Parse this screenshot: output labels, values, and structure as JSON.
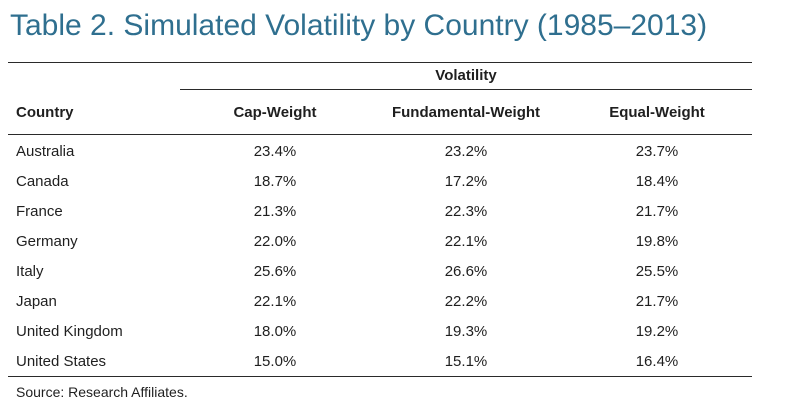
{
  "title": "Table 2. Simulated Volatility by Country (1985–2013)",
  "group_header": "Volatility",
  "columns": {
    "country": "Country",
    "cap": "Cap-Weight",
    "fund": "Fundamental-Weight",
    "eq": "Equal-Weight"
  },
  "rows": [
    {
      "country": "Australia",
      "cap": "23.4%",
      "fund": "23.2%",
      "eq": "23.7%"
    },
    {
      "country": "Canada",
      "cap": "18.7%",
      "fund": "17.2%",
      "eq": "18.4%"
    },
    {
      "country": "France",
      "cap": "21.3%",
      "fund": "22.3%",
      "eq": "21.7%"
    },
    {
      "country": "Germany",
      "cap": "22.0%",
      "fund": "22.1%",
      "eq": "19.8%"
    },
    {
      "country": "Italy",
      "cap": "25.6%",
      "fund": "26.6%",
      "eq": "25.5%"
    },
    {
      "country": "Japan",
      "cap": "22.1%",
      "fund": "22.2%",
      "eq": "21.7%"
    },
    {
      "country": "United Kingdom",
      "cap": "18.0%",
      "fund": "19.3%",
      "eq": "19.2%"
    },
    {
      "country": "United States",
      "cap": "15.0%",
      "fund": "15.1%",
      "eq": "16.4%"
    }
  ],
  "source": "Source: Research Affiliates.",
  "colors": {
    "title": "#2f6f8f",
    "text": "#1f1f1f",
    "rule": "#2a2a2a"
  }
}
